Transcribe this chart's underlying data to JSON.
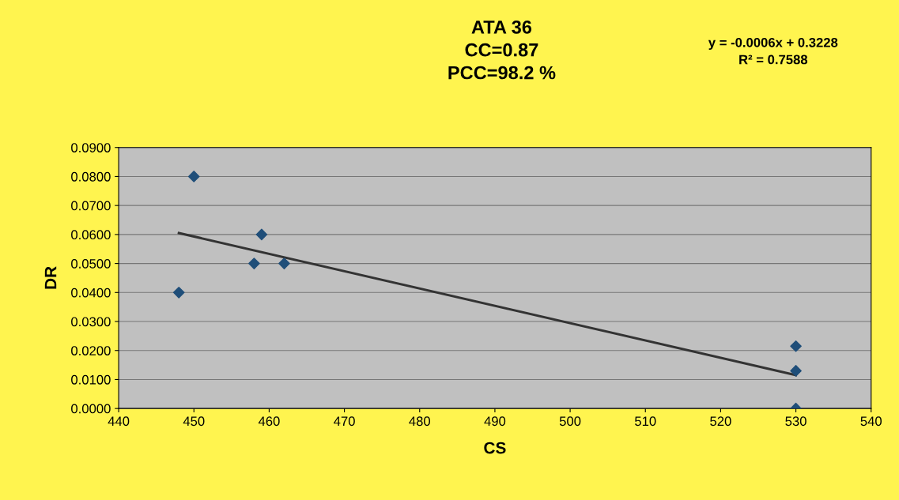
{
  "chart_data": {
    "type": "scatter",
    "title": "ATA 36\nCC=0.87\nPCC=98.2 %",
    "xlabel": "CS",
    "ylabel": "DR",
    "annotations": [
      "y = -0.0006x + 0.3228\nR² = 0.7588"
    ],
    "series": [
      {
        "color": "#1f4e79",
        "marker": "diamond",
        "x": [
          448,
          450,
          458,
          459,
          462,
          530,
          530,
          530
        ],
        "values": [
          0.04,
          0.08,
          0.05,
          0.06,
          0.05,
          0.0215,
          0.013,
          0.0
        ]
      },
      {
        "type": "line",
        "color": "#333333",
        "marker": "none",
        "line_style": "solid",
        "x": [
          448,
          530
        ],
        "values": [
          0.0605,
          0.0115
        ]
      }
    ],
    "xlim": [
      440,
      540
    ],
    "xticks": [
      440,
      450,
      460,
      470,
      480,
      490,
      500,
      510,
      520,
      530,
      540
    ],
    "ylim": [
      0,
      0.09
    ],
    "yticks": [
      {
        "value": 0,
        "label": "0.0000"
      },
      {
        "value": 0.01,
        "label": "0.0100"
      },
      {
        "value": 0.02,
        "label": "0.0200"
      },
      {
        "value": 0.03,
        "label": "0.0300"
      },
      {
        "value": 0.04,
        "label": "0.0400"
      },
      {
        "value": 0.05,
        "label": "0.0500"
      },
      {
        "value": 0.06,
        "label": "0.0600"
      },
      {
        "value": 0.07,
        "label": "0.0700"
      },
      {
        "value": 0.08,
        "label": "0.0800"
      },
      {
        "value": 0.09,
        "label": "0.0900"
      }
    ],
    "grid": "y",
    "legend": false
  }
}
